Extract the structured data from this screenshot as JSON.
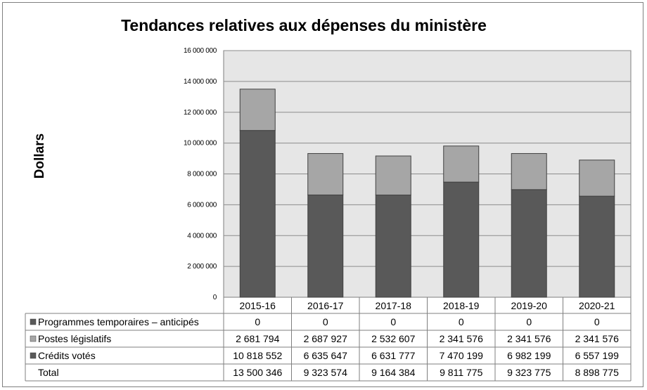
{
  "chart_data": {
    "type": "bar",
    "stacked": true,
    "title": "Tendances relatives aux dépenses du ministère",
    "ylabel": "Dollars",
    "xlabel": "",
    "ylim": [
      0,
      16000000
    ],
    "yticks": [
      0,
      2000000,
      4000000,
      6000000,
      8000000,
      10000000,
      12000000,
      14000000,
      16000000
    ],
    "ytick_labels": [
      "0",
      "2 000 000",
      "4 000 000",
      "6 000 000",
      "8 000 000",
      "10 000 000",
      "12 000 000",
      "14 000 000",
      "16 000 000"
    ],
    "grid": true,
    "legend": "data table with legend keys below the chart",
    "categories": [
      "2015-16",
      "2016-17",
      "2017-18",
      "2018-19",
      "2019-20",
      "2020-21"
    ],
    "series": [
      {
        "name": "Programmes temporaires –  anticipés",
        "color": "#595959",
        "values": [
          0,
          0,
          0,
          0,
          0,
          0
        ],
        "labels": [
          "0",
          "0",
          "0",
          "0",
          "0",
          "0"
        ]
      },
      {
        "name": "Postes législatifs",
        "color": "#a6a6a6",
        "values": [
          2681794,
          2687927,
          2532607,
          2341576,
          2341576,
          2341576
        ],
        "labels": [
          "2 681 794",
          "2 687 927",
          "2 532 607",
          "2 341 576",
          "2 341 576",
          "2 341 576"
        ]
      },
      {
        "name": "Crédits votés",
        "color": "#595959",
        "values": [
          10818552,
          6635647,
          6631777,
          7470199,
          6982199,
          6557199
        ],
        "labels": [
          "10 818 552",
          "6 635 647",
          "6 631 777",
          "7 470 199",
          "6 982 199",
          "6 557 199"
        ]
      }
    ],
    "total": {
      "name": "Total",
      "values": [
        13500346,
        9323574,
        9164384,
        9811775,
        9323775,
        8898775
      ],
      "labels": [
        "13 500 346",
        "9 323 574",
        "9 164 384",
        "9 811 775",
        "9 323 775",
        "8 898 775"
      ]
    },
    "colors": {
      "plot_background": "#e6e6e6",
      "gridline": "#8c8c8c",
      "border": "#7f7f7f"
    }
  }
}
